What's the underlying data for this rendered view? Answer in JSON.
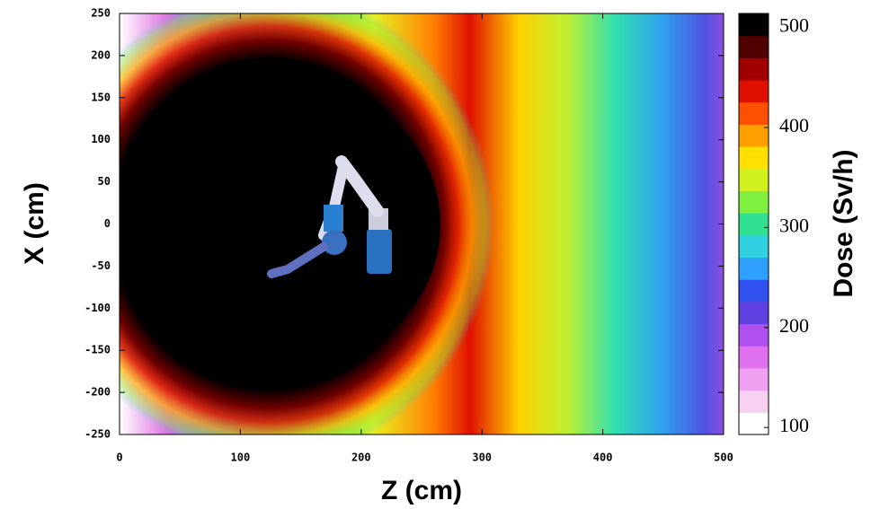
{
  "chart_data": {
    "type": "heatmap",
    "xlabel": "Z (cm)",
    "ylabel": "X (cm)",
    "xlim": [
      0,
      500
    ],
    "xticks": [
      0,
      100,
      200,
      300,
      400,
      500
    ],
    "ylim": [
      -250,
      250
    ],
    "yticks": [
      -250,
      -200,
      -150,
      -100,
      -50,
      0,
      50,
      100,
      150,
      200,
      250
    ],
    "colorbar": {
      "label": "Dose (Sv/h)",
      "lim": [
        93,
        514
      ],
      "ticks": [
        100,
        200,
        300,
        400,
        500
      ],
      "colors": [
        "#ffffff",
        "#f8d0f0",
        "#f0a0f0",
        "#e070f0",
        "#b050f0",
        "#6040e0",
        "#3050f0",
        "#30a0ff",
        "#30d0e0",
        "#30e090",
        "#80f040",
        "#d0f020",
        "#ffe000",
        "#ffa000",
        "#ff5000",
        "#e01000",
        "#a00000",
        "#500000",
        "#000000"
      ]
    }
  }
}
